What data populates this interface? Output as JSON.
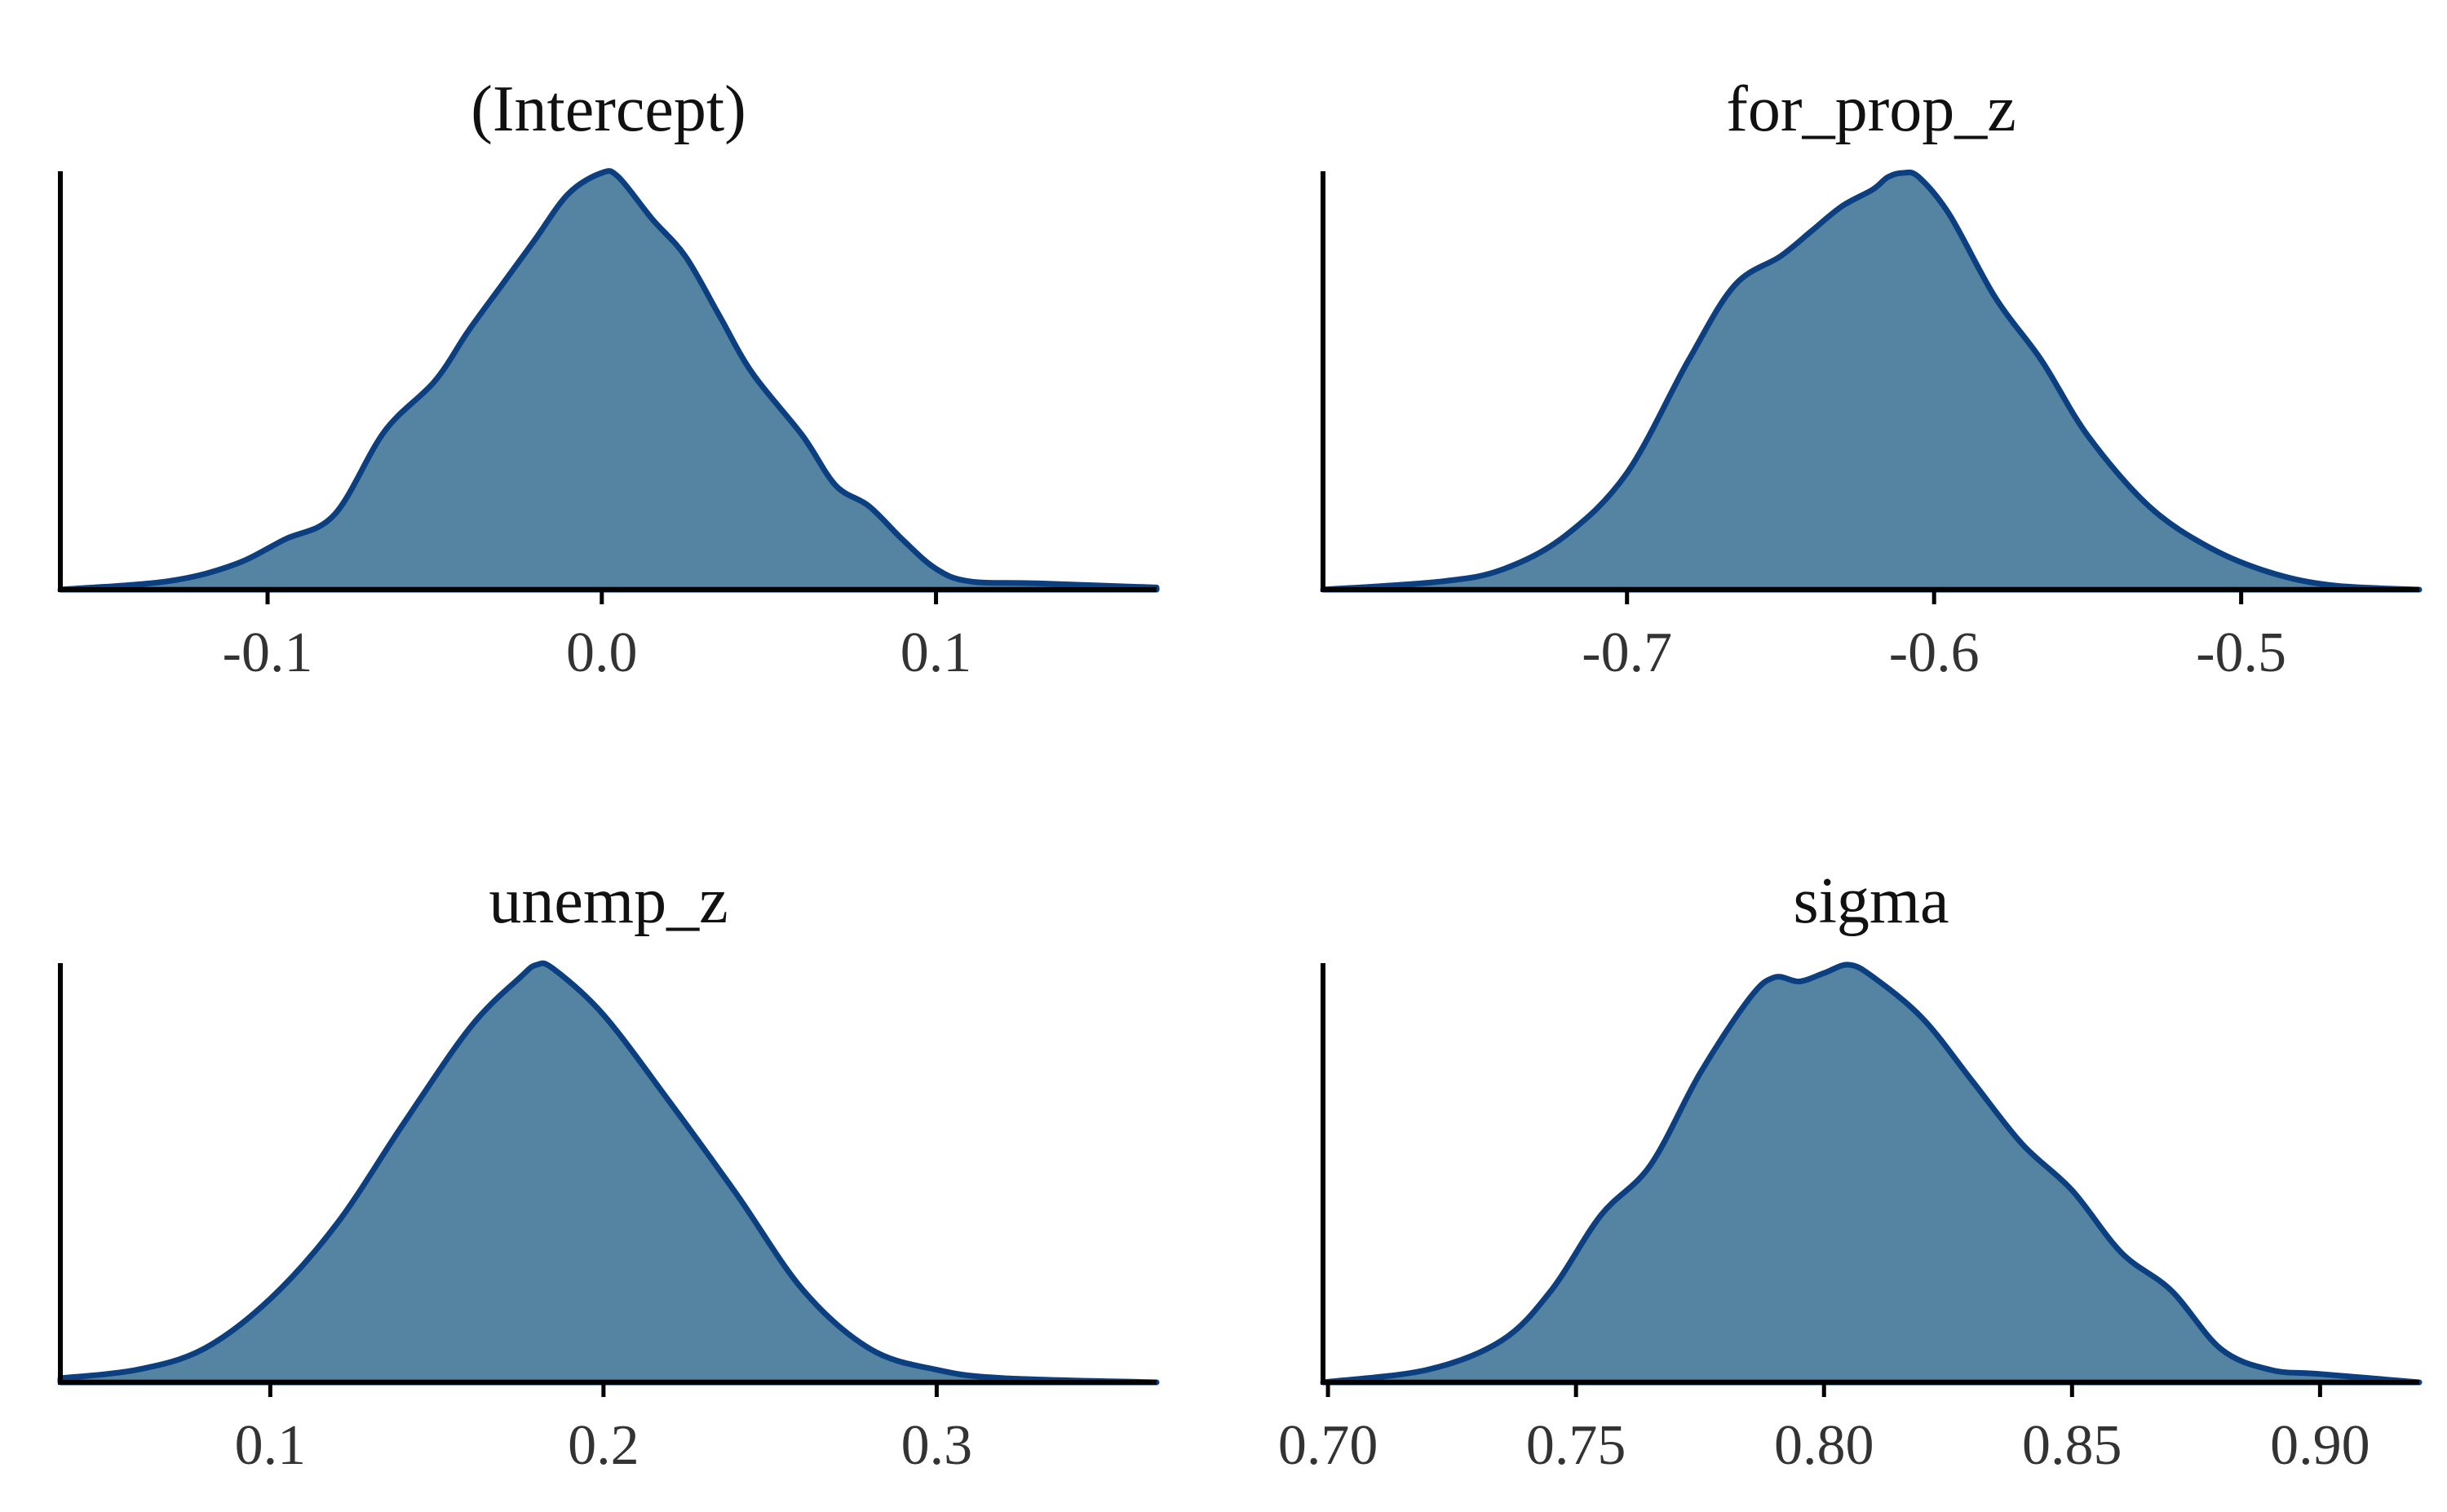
{
  "colors": {
    "fill": "#5484a2",
    "outline": "#0c3f7f",
    "axis": "#000000"
  },
  "chart_data": [
    {
      "type": "area",
      "title": "(Intercept)",
      "xlabel": "",
      "ylabel": "",
      "xlim": [
        -0.162,
        0.166
      ],
      "ylim": [
        0,
        1.0
      ],
      "x_ticks": [
        -0.1,
        0.0,
        0.1
      ],
      "x_tick_labels": [
        "-0.1",
        "0.0",
        "0.1"
      ],
      "grid": false,
      "y_axis_labels": false,
      "x": [
        -0.162,
        -0.13,
        -0.11,
        -0.095,
        -0.08,
        -0.065,
        -0.05,
        -0.04,
        -0.03,
        -0.02,
        -0.01,
        0.0,
        0.005,
        0.015,
        0.025,
        0.035,
        0.045,
        0.06,
        0.07,
        0.08,
        0.09,
        0.1,
        0.11,
        0.13,
        0.166
      ],
      "density": [
        0.0,
        0.02,
        0.06,
        0.12,
        0.18,
        0.38,
        0.5,
        0.62,
        0.73,
        0.84,
        0.95,
        1.0,
        0.99,
        0.89,
        0.8,
        0.66,
        0.52,
        0.37,
        0.25,
        0.2,
        0.12,
        0.05,
        0.02,
        0.015,
        0.005
      ]
    },
    {
      "type": "area",
      "title": "for_prop_z",
      "xlabel": "",
      "ylabel": "",
      "xlim": [
        -0.799,
        -0.442
      ],
      "ylim": [
        0,
        1.0
      ],
      "x_ticks": [
        -0.7,
        -0.6,
        -0.5
      ],
      "x_tick_labels": [
        "-0.7",
        "-0.6",
        "-0.5"
      ],
      "grid": false,
      "y_axis_labels": false,
      "x": [
        -0.799,
        -0.76,
        -0.74,
        -0.72,
        -0.7,
        -0.68,
        -0.665,
        -0.65,
        -0.64,
        -0.63,
        -0.62,
        -0.615,
        -0.61,
        -0.605,
        -0.595,
        -0.58,
        -0.565,
        -0.55,
        -0.53,
        -0.51,
        -0.49,
        -0.47,
        -0.442
      ],
      "density": [
        0.0,
        0.02,
        0.05,
        0.13,
        0.28,
        0.55,
        0.73,
        0.8,
        0.86,
        0.92,
        0.96,
        0.99,
        1.0,
        0.99,
        0.9,
        0.7,
        0.55,
        0.37,
        0.2,
        0.1,
        0.04,
        0.01,
        0.0
      ]
    },
    {
      "type": "area",
      "title": "unemp_z",
      "xlabel": "",
      "ylabel": "",
      "xlim": [
        0.037,
        0.366
      ],
      "ylim": [
        0,
        1.0
      ],
      "x_ticks": [
        0.1,
        0.2,
        0.3
      ],
      "x_tick_labels": [
        "0.1",
        "0.2",
        "0.3"
      ],
      "grid": false,
      "y_axis_labels": false,
      "x": [
        0.037,
        0.06,
        0.08,
        0.1,
        0.12,
        0.14,
        0.16,
        0.175,
        0.18,
        0.185,
        0.2,
        0.22,
        0.24,
        0.26,
        0.28,
        0.3,
        0.32,
        0.366
      ],
      "density": [
        0.01,
        0.03,
        0.08,
        0.2,
        0.38,
        0.62,
        0.85,
        0.97,
        1.0,
        0.99,
        0.88,
        0.67,
        0.45,
        0.22,
        0.08,
        0.03,
        0.01,
        0.0
      ]
    },
    {
      "type": "area",
      "title": "sigma",
      "xlabel": "",
      "ylabel": "",
      "xlim": [
        0.699,
        0.92
      ],
      "ylim": [
        0,
        1.0
      ],
      "x_ticks": [
        0.7,
        0.75,
        0.8,
        0.85,
        0.9
      ],
      "x_tick_labels": [
        "0.70",
        "0.75",
        "0.80",
        "0.85",
        "0.90"
      ],
      "grid": false,
      "y_axis_labels": false,
      "x": [
        0.699,
        0.72,
        0.735,
        0.745,
        0.755,
        0.765,
        0.775,
        0.785,
        0.79,
        0.795,
        0.8,
        0.805,
        0.81,
        0.82,
        0.83,
        0.84,
        0.85,
        0.86,
        0.87,
        0.88,
        0.89,
        0.9,
        0.92
      ],
      "density": [
        0.0,
        0.03,
        0.1,
        0.22,
        0.4,
        0.52,
        0.74,
        0.92,
        0.97,
        0.96,
        0.98,
        1.0,
        0.97,
        0.87,
        0.72,
        0.57,
        0.46,
        0.31,
        0.22,
        0.08,
        0.03,
        0.02,
        0.0
      ]
    }
  ]
}
